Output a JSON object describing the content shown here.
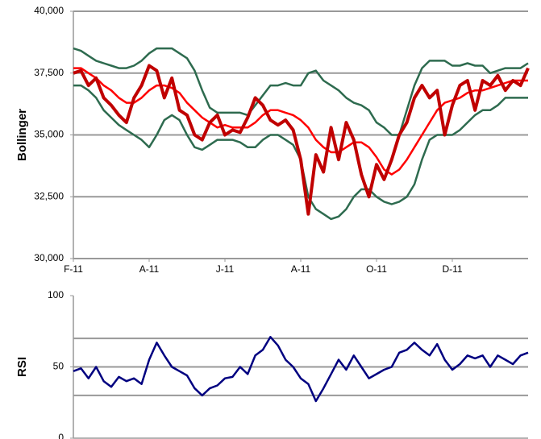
{
  "chart_data": [
    {
      "type": "line",
      "ylabel": "Bollinger",
      "categories": [
        "F-11",
        null,
        null,
        null,
        null,
        null,
        null,
        null,
        null,
        null,
        "A-11",
        null,
        null,
        null,
        null,
        null,
        null,
        null,
        null,
        null,
        "J-11",
        null,
        null,
        null,
        null,
        null,
        null,
        null,
        null,
        null,
        "A-11",
        null,
        null,
        null,
        null,
        null,
        null,
        null,
        null,
        null,
        "O-11",
        null,
        null,
        null,
        null,
        null,
        null,
        null,
        null,
        null,
        "D-11",
        null,
        null,
        null,
        null,
        null,
        null,
        null,
        null,
        null,
        null
      ],
      "ylim": [
        30000,
        40000
      ],
      "yticks": [
        {
          "value": 30000,
          "label": "30,000"
        },
        {
          "value": 32500,
          "label": "32,500"
        },
        {
          "value": 35000,
          "label": "35,000"
        },
        {
          "value": 37500,
          "label": "37,500"
        },
        {
          "value": 40000,
          "label": "40,000"
        }
      ],
      "grid": true,
      "series": [
        {
          "color": "#2e6b4f",
          "values": [
            38500,
            38400,
            38200,
            38000,
            37900,
            37800,
            37700,
            37700,
            37800,
            38000,
            38300,
            38500,
            38500,
            38500,
            38300,
            38100,
            37600,
            36800,
            36100,
            35900,
            35900,
            35900,
            35900,
            35800,
            36200,
            36600,
            37000,
            37000,
            37100,
            37000,
            37000,
            37500,
            37600,
            37200,
            37000,
            36800,
            36500,
            36300,
            36200,
            36000,
            35500,
            35300,
            35000,
            35000,
            36000,
            37000,
            37700,
            38000,
            38000,
            38000,
            37800,
            37800,
            37900,
            37800,
            37800,
            37500,
            37600,
            37700,
            37700,
            37700,
            37900
          ]
        },
        {
          "color": "#2e6b4f",
          "values": [
            37000,
            37000,
            36800,
            36500,
            36000,
            35700,
            35400,
            35200,
            35000,
            34800,
            34500,
            35000,
            35600,
            35800,
            35600,
            35000,
            34500,
            34400,
            34600,
            34800,
            34800,
            34800,
            34700,
            34500,
            34500,
            34800,
            35000,
            35000,
            34800,
            34600,
            34000,
            32500,
            32000,
            31800,
            31600,
            31700,
            32000,
            32500,
            32800,
            32800,
            32500,
            32300,
            32200,
            32300,
            32500,
            33000,
            34000,
            34800,
            35000,
            35000,
            35000,
            35200,
            35500,
            35800,
            36000,
            36000,
            36200,
            36500,
            36500,
            36500,
            36500
          ]
        },
        {
          "color": "#ff0000",
          "values": [
            37700,
            37700,
            37500,
            37300,
            37000,
            36800,
            36500,
            36300,
            36300,
            36500,
            36800,
            37000,
            37000,
            36900,
            36700,
            36300,
            36000,
            35700,
            35500,
            35300,
            35400,
            35300,
            35300,
            35300,
            35500,
            35800,
            36000,
            36000,
            35900,
            35800,
            35600,
            35300,
            34800,
            34500,
            34300,
            34300,
            34500,
            34700,
            34700,
            34500,
            34100,
            33600,
            33400,
            33600,
            34000,
            34500,
            35000,
            35500,
            36000,
            36300,
            36400,
            36500,
            36700,
            36800,
            36800,
            36900,
            37000,
            37100,
            37200,
            37200,
            37200
          ]
        },
        {
          "color": "#c00000",
          "values": [
            37500,
            37600,
            37000,
            37300,
            36500,
            36200,
            35800,
            35500,
            36500,
            37000,
            37800,
            37600,
            36500,
            37300,
            36000,
            35800,
            35000,
            34800,
            35500,
            35800,
            35000,
            35200,
            35100,
            35700,
            36500,
            36200,
            35600,
            35400,
            35600,
            35200,
            34000,
            31800,
            34200,
            33500,
            35300,
            34000,
            35500,
            34800,
            33400,
            32500,
            33800,
            33200,
            34000,
            35000,
            35500,
            36500,
            37000,
            36500,
            36800,
            35000,
            36200,
            37000,
            37200,
            36000,
            37200,
            37000,
            37400,
            36800,
            37200,
            37000,
            37700
          ]
        }
      ]
    },
    {
      "type": "line",
      "ylabel": "RSI",
      "ylim": [
        0,
        100
      ],
      "yticks": [
        0,
        50,
        100
      ],
      "grid": false,
      "hlines": [
        30,
        50,
        70
      ],
      "series": [
        {
          "color": "#000080",
          "values": [
            47,
            49,
            42,
            50,
            40,
            36,
            43,
            40,
            42,
            38,
            55,
            67,
            58,
            50,
            47,
            44,
            35,
            30,
            35,
            37,
            42,
            43,
            50,
            45,
            58,
            62,
            71,
            65,
            55,
            50,
            42,
            38,
            26,
            35,
            45,
            55,
            48,
            58,
            50,
            42,
            45,
            48,
            50,
            60,
            62,
            67,
            62,
            58,
            66,
            55,
            48,
            52,
            58,
            56,
            58,
            50,
            58,
            55,
            52,
            58,
            60
          ]
        }
      ]
    }
  ]
}
